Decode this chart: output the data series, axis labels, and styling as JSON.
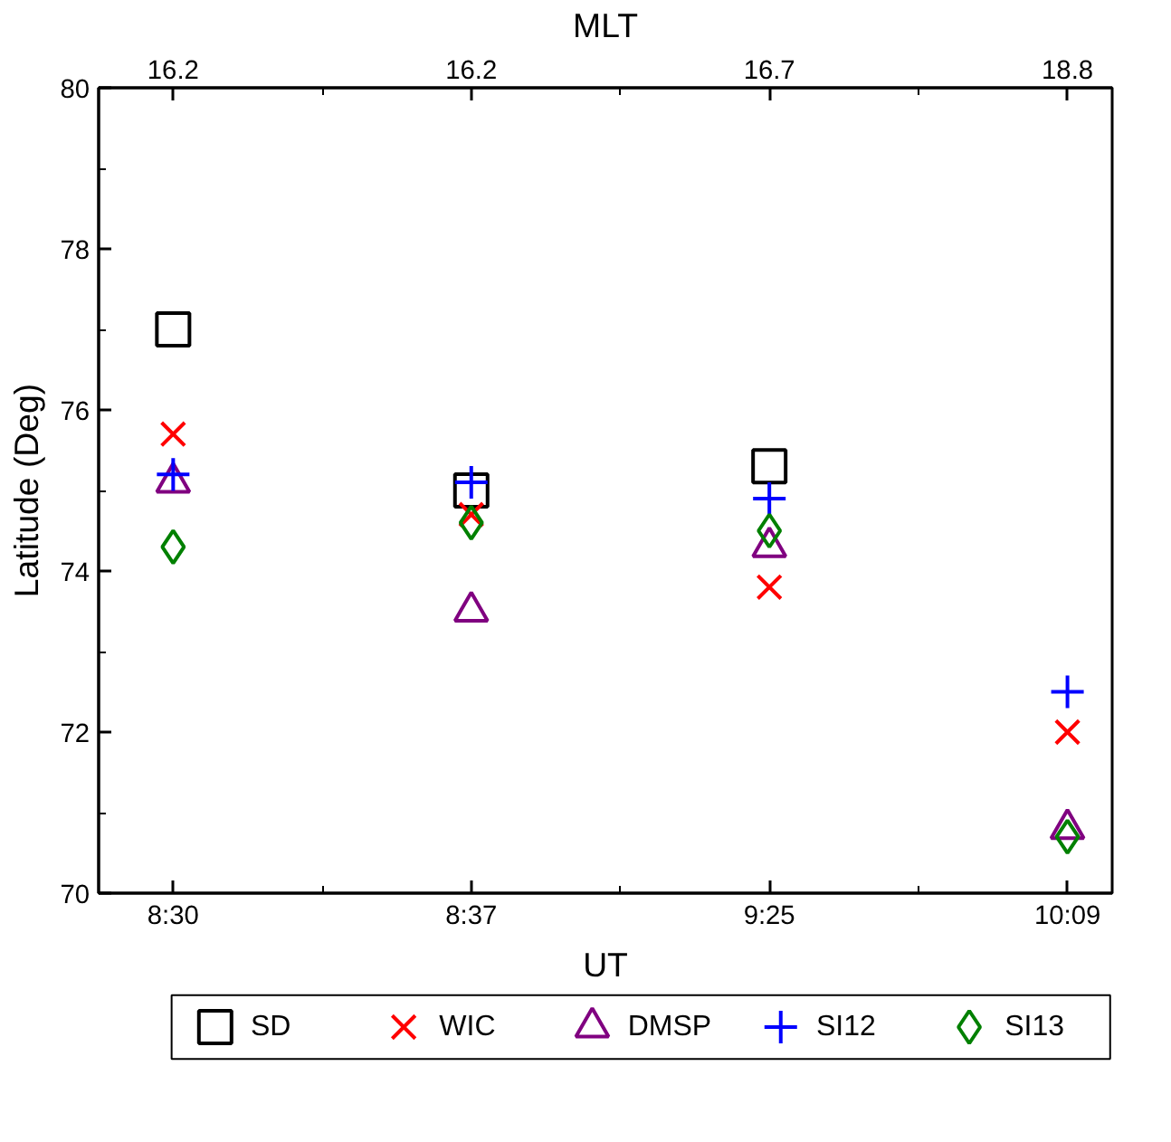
{
  "chart_data": {
    "type": "scatter",
    "xlabel": "UT",
    "ylabel": "Latitude (Deg)",
    "x2label": "MLT",
    "categories": [
      "8:30",
      "8:37",
      "9:25",
      "10:09"
    ],
    "annotations": [
      "16.2",
      "16.2",
      "16.7",
      "18.8"
    ],
    "ylim": [
      70,
      80
    ],
    "yticks": [
      70,
      {
        "value": 71,
        "label": null
      },
      72,
      {
        "value": 73,
        "label": null
      },
      74,
      {
        "value": 75,
        "label": null
      },
      76,
      {
        "value": 77,
        "label": null
      },
      78,
      {
        "value": 79,
        "label": null
      },
      80
    ],
    "grid": false,
    "legend": "bottom",
    "series": [
      {
        "name": "SD",
        "color": "#000000",
        "marker": "square",
        "values": [
          77.0,
          75.0,
          75.3,
          null
        ]
      },
      {
        "name": "WIC",
        "color": "#ff0000",
        "marker": "x",
        "values": [
          75.7,
          74.7,
          73.8,
          72.0
        ]
      },
      {
        "name": "DMSP",
        "color": "#800080",
        "marker": "triangle",
        "values": [
          75.1,
          73.5,
          74.3,
          70.8
        ]
      },
      {
        "name": "SI12",
        "color": "#0000ff",
        "marker": "cross",
        "values": [
          75.2,
          75.1,
          74.9,
          72.5
        ]
      },
      {
        "name": "SI13",
        "color": "#008000",
        "marker": "diamond",
        "values": [
          74.3,
          74.6,
          74.5,
          70.7
        ]
      }
    ]
  }
}
